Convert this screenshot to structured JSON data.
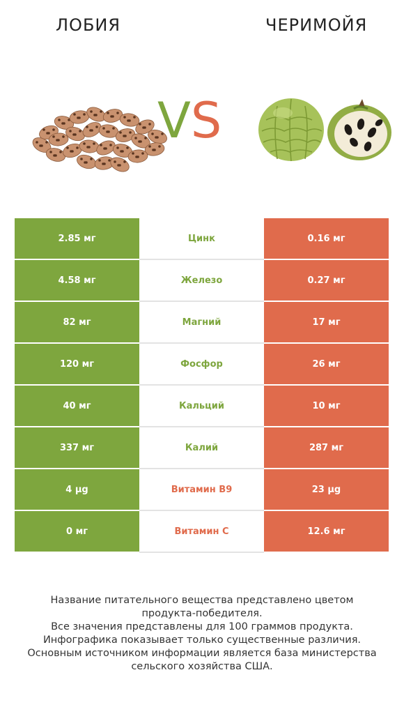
{
  "header": {
    "left_title": "ЛОБИЯ",
    "right_title": "ЧЕРИМОЙЯ",
    "vs_v": "V",
    "vs_s": "S"
  },
  "colors": {
    "left_accent": "#7ea63e",
    "right_accent": "#e06b4c"
  },
  "images": {
    "left": "pinto-beans-image",
    "right": "cherimoya-fruit-image"
  },
  "rows": [
    {
      "name": "Цинк",
      "left": "2.85 мг",
      "right": "0.16 мг",
      "winner": "left"
    },
    {
      "name": "Железо",
      "left": "4.58 мг",
      "right": "0.27 мг",
      "winner": "left"
    },
    {
      "name": "Магний",
      "left": "82 мг",
      "right": "17 мг",
      "winner": "left"
    },
    {
      "name": "Фосфор",
      "left": "120 мг",
      "right": "26 мг",
      "winner": "left"
    },
    {
      "name": "Кальций",
      "left": "40 мг",
      "right": "10 мг",
      "winner": "left"
    },
    {
      "name": "Калий",
      "left": "337 мг",
      "right": "287 мг",
      "winner": "left"
    },
    {
      "name": "Витамин B9",
      "left": "4 µg",
      "right": "23 µg",
      "winner": "right"
    },
    {
      "name": "Витамин C",
      "left": "0 мг",
      "right": "12.6 мг",
      "winner": "right"
    }
  ],
  "footer": {
    "line1": "Название питательного вещества представлено цветом",
    "line2": "продукта-победителя.",
    "line3": "Все значения представлены для 100 граммов продукта.",
    "line4": "Инфографика показывает только существенные различия.",
    "line5": "Основным источником информации является база министерства",
    "line6": "сельского хозяйства США."
  }
}
